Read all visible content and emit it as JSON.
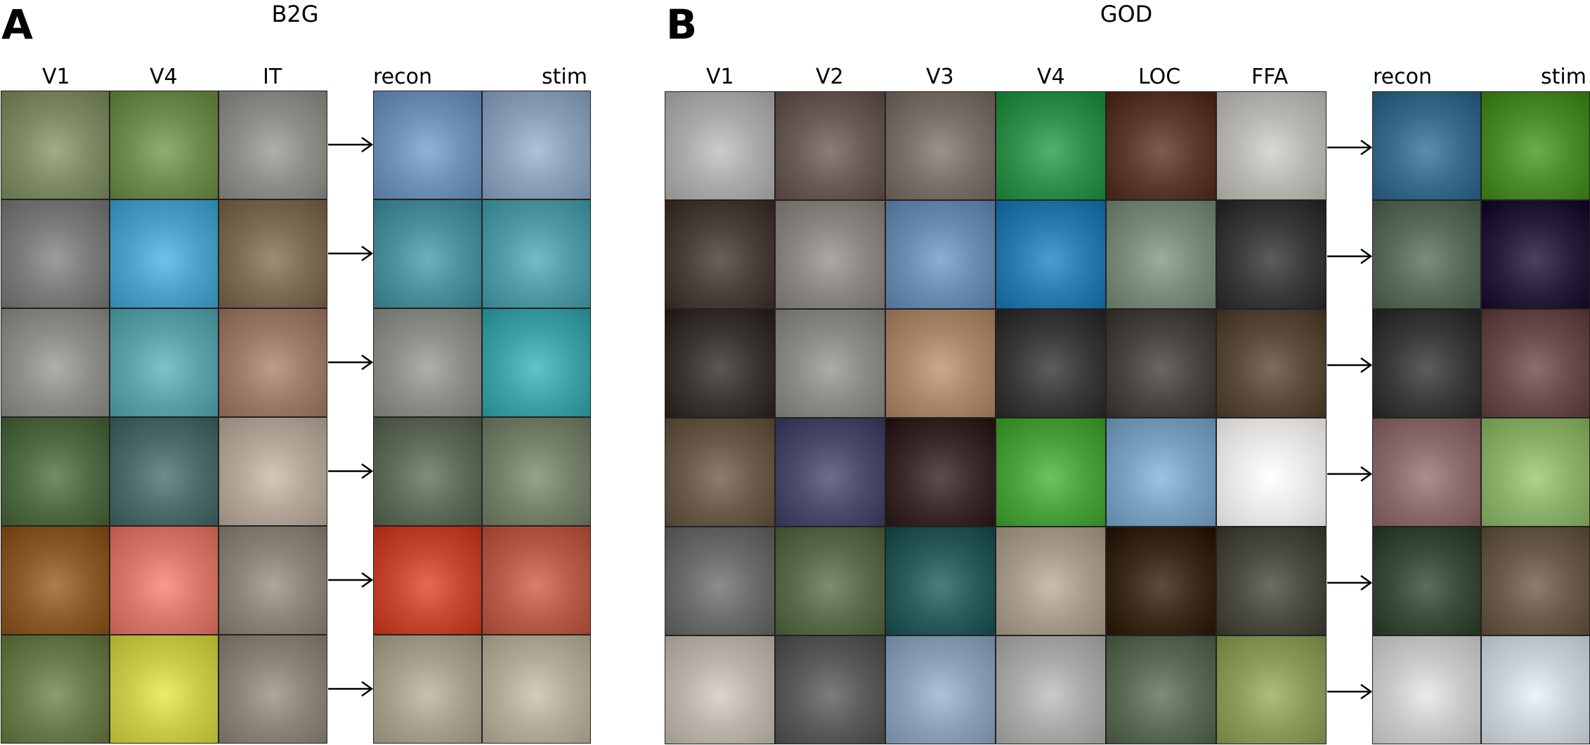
{
  "panels": [
    {
      "letter": "A",
      "title": "B2G",
      "left_labels": [
        "V1",
        "V4",
        "IT"
      ],
      "right_labels": [
        "recon",
        "stim"
      ],
      "rows": [
        {
          "tiles": [
            "#7d8a63",
            "#6f8a4e",
            "#8e8c86",
            "#6e8fb8",
            "#8aa0b8"
          ]
        },
        {
          "tiles": [
            "#7a7a78",
            "#4aa0c7",
            "#7d6a55",
            "#4b8e99",
            "#4f9aa5"
          ]
        },
        {
          "tiles": [
            "#8a8d88",
            "#5aa2a8",
            "#9b7a6a",
            "#8a8d88",
            "#3fa0a5"
          ]
        },
        {
          "tiles": [
            "#4f6a45",
            "#4d6a6a",
            "#b0a596",
            "#5f6a58",
            "#75806a"
          ]
        },
        {
          "tiles": [
            "#8a5a2a",
            "#d8766a",
            "#8a8478",
            "#c6452e",
            "#b85c4a"
          ]
        },
        {
          "tiles": [
            "#6a7a4a",
            "#c9c94a",
            "#8a8478",
            "#a69f8c",
            "#b0aa97"
          ]
        }
      ]
    },
    {
      "letter": "B",
      "title": "GOD",
      "left_labels": [
        "V1",
        "V2",
        "V3",
        "V4",
        "LOC",
        "FFA"
      ],
      "right_labels": [
        "recon",
        "stim"
      ],
      "rows": [
        {
          "tiles": [
            "#a9aaa8",
            "#6a5a55",
            "#7a6f66",
            "#2f8f4a",
            "#5a3a2a",
            "#b8b6b0",
            "#3a6a8a",
            "#4a8a2a"
          ]
        },
        {
          "tiles": [
            "#4a3f38",
            "#8a8580",
            "#6a8ab0",
            "#2a7ab0",
            "#7a8a7a",
            "#3a3a3a",
            "#5a6a5a",
            "#2a1f3a"
          ]
        },
        {
          "tiles": [
            "#3a3530",
            "#8a8a85",
            "#a8866a",
            "#3a3a3a",
            "#4a4440",
            "#5a4a3a",
            "#3a3a3a",
            "#6a4a4a"
          ]
        },
        {
          "tiles": [
            "#6a5a4a",
            "#4a4a6a",
            "#3a2a2a",
            "#4aa03a",
            "#7aa0c0",
            "#eae8e6",
            "#8a6a6a",
            "#8ab06a"
          ]
        },
        {
          "tiles": [
            "#6a6a68",
            "#5a6a4a",
            "#2a5a5a",
            "#a89a88",
            "#3a2a1a",
            "#4a4a40",
            "#3a4a3a",
            "#6a5a4a"
          ]
        },
        {
          "tiles": [
            "#b8b2a8",
            "#5a5a5a",
            "#8aa0b8",
            "#a8a8a6",
            "#5a6a55",
            "#8a9a5a",
            "#c8c8c8",
            "#c8d0d8"
          ]
        }
      ]
    }
  ]
}
